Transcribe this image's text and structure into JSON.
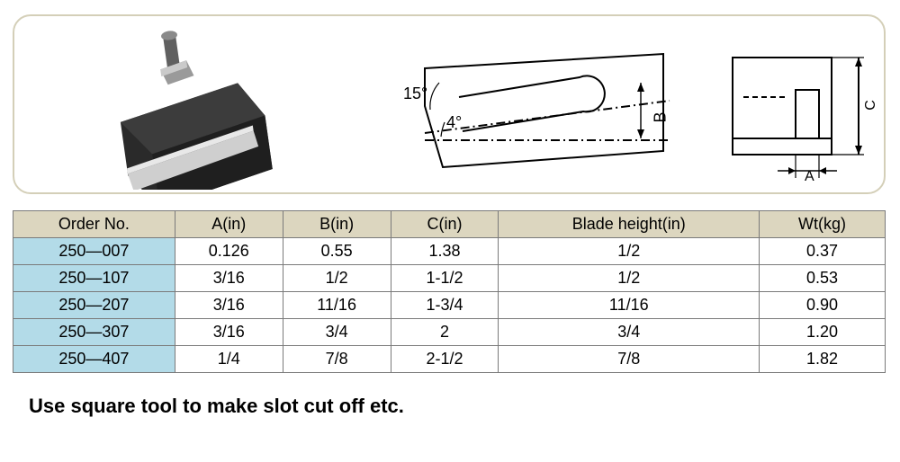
{
  "diagram": {
    "angle1": "15°",
    "angle2": "4°",
    "dim_b": "B",
    "dim_a": "A",
    "dim_c": "C",
    "panel_border_color": "#d4cfb8",
    "panel_bg": "#ffffff"
  },
  "table": {
    "header_bg": "#dcd6bf",
    "order_col_bg": "#b3dbe8",
    "border_color": "#7a7a7a",
    "columns": [
      "Order  No.",
      "A(in)",
      "B(in)",
      "C(in)",
      "Blade height(in)",
      "Wt(kg)"
    ],
    "rows": [
      {
        "order": "250—007",
        "a": "0.126",
        "b": "0.55",
        "c": "1.38",
        "blade": "1/2",
        "wt": "0.37"
      },
      {
        "order": "250—107",
        "a": "3/16",
        "b": "1/2",
        "c": "1-1/2",
        "blade": "1/2",
        "wt": "0.53"
      },
      {
        "order": "250—207",
        "a": "3/16",
        "b": "11/16",
        "c": "1-3/4",
        "blade": "11/16",
        "wt": "0.90"
      },
      {
        "order": "250—307",
        "a": "3/16",
        "b": "3/4",
        "c": "2",
        "blade": "3/4",
        "wt": "1.20"
      },
      {
        "order": "250—407",
        "a": "1/4",
        "b": "7/8",
        "c": "2-1/2",
        "blade": "7/8",
        "wt": "1.82"
      }
    ]
  },
  "footer_note": "Use square tool to make slot cut off etc."
}
